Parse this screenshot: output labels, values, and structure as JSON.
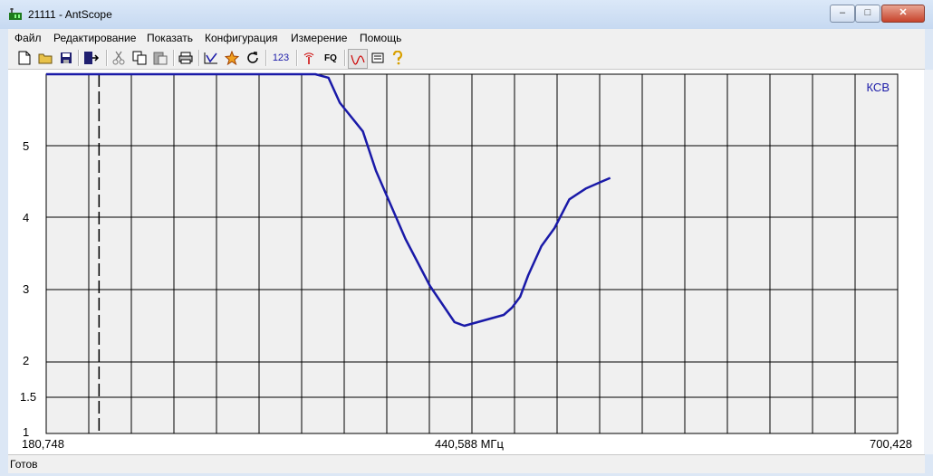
{
  "window": {
    "title": "21111 - AntScope",
    "minimize": "–",
    "maximize": "□",
    "close": "✕"
  },
  "menu": [
    "Файл",
    "Редактирование",
    "Показать",
    "Конфигурация",
    "Измерение",
    "Помощь"
  ],
  "toolbar": {
    "btn_123": "123",
    "btn_fq": "FQ"
  },
  "status": "Готов",
  "chart_data": {
    "type": "line",
    "ylabel": "КСВ",
    "y_ticks": [
      "5",
      "4",
      "3",
      "2",
      "1.5",
      "1"
    ],
    "x_ticks": [
      "180,748",
      "440,588 МГц",
      "700,428"
    ],
    "xlim": [
      180.748,
      700.428
    ],
    "ylim": [
      1,
      6
    ],
    "marker_x": 213.0,
    "grid": true,
    "series": [
      {
        "color": "#1a1aa8",
        "x": [
          180.748,
          250,
          300,
          345,
          353,
          360,
          374,
          382,
          400,
          415,
          430,
          436,
          444,
          452,
          460,
          465,
          470,
          475,
          483,
          491,
          500,
          510,
          520,
          525
        ],
        "y": [
          6,
          6,
          6,
          6,
          5.95,
          5.6,
          5.2,
          4.65,
          3.7,
          3.05,
          2.55,
          2.5,
          2.55,
          2.6,
          2.65,
          2.75,
          2.9,
          3.2,
          3.6,
          3.85,
          4.25,
          4.4,
          4.5,
          4.55
        ]
      }
    ]
  }
}
